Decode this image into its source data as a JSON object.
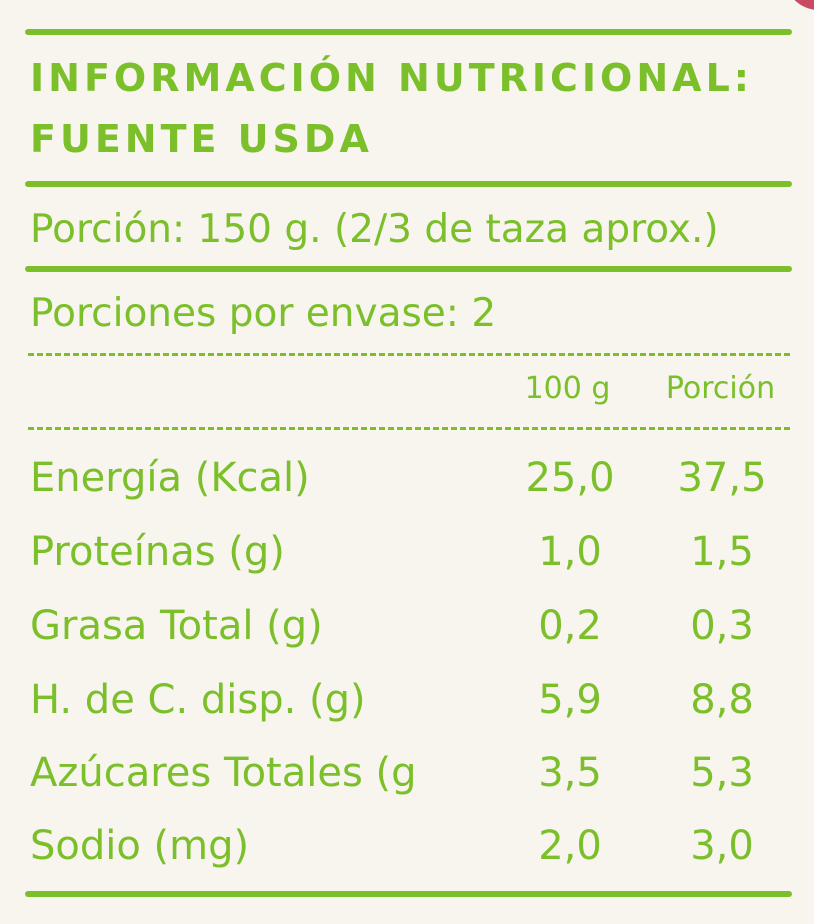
{
  "panel": {
    "title_line1": "INFORMACIÓN NUTRICIONAL:",
    "title_line2": "FUENTE USDA",
    "portion": "Porción: 150 g. (2/3 de taza aprox.)",
    "servings": "Porciones por envase: 2",
    "columns": [
      "100 g",
      "Porción"
    ],
    "rows": [
      {
        "label": "Energía (Kcal)",
        "per_100g": "25,0",
        "per_portion": "37,5"
      },
      {
        "label": "Proteínas (g)",
        "per_100g": "1,0",
        "per_portion": "1,5"
      },
      {
        "label": "Grasa Total (g)",
        "per_100g": "0,2",
        "per_portion": "0,3"
      },
      {
        "label": "H. de C. disp. (g)",
        "per_100g": "5,9",
        "per_portion": "8,8"
      },
      {
        "label": "Azúcares Totales (g",
        "per_100g": "3,5",
        "per_portion": "5,3"
      },
      {
        "label": "Sodio (mg)",
        "per_100g": "2,0",
        "per_portion": "3,0"
      }
    ]
  },
  "colors": {
    "accent": "#7bbf2a",
    "background": "#f8f4ee",
    "corner": "#c94a63"
  }
}
